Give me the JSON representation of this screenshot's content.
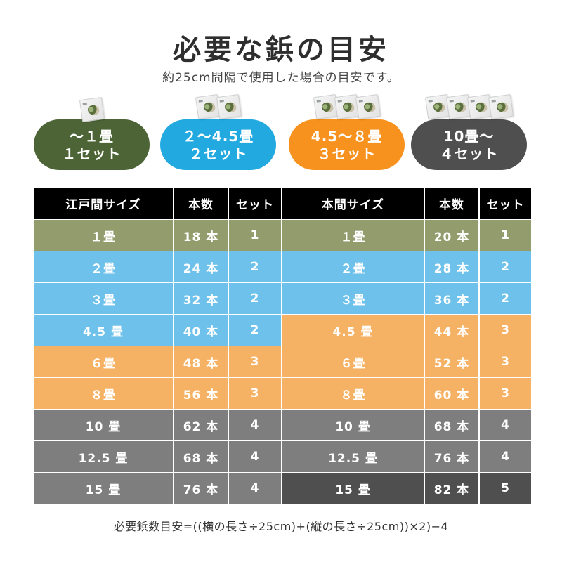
{
  "title": "必要な鋲の目安",
  "subtitle": "約25cm間隔で使用した場合の目安です。",
  "colors": {
    "olive": "#4d6536",
    "blue": "#22a9e0",
    "orange": "#f7921e",
    "dark": "#4f4f4f",
    "row_olive": "#929c6c",
    "row_blue": "#6ec1ea",
    "row_orange": "#f6b264",
    "row_gray": "#7e7e7e",
    "row_dark": "#4f4f4f",
    "header": "#000000"
  },
  "product_icon": "tack-package-icon",
  "pills": [
    {
      "line1": "〜１畳",
      "line2": "１セット",
      "color": "olive",
      "packs": 1
    },
    {
      "line1": "２〜4.5畳",
      "line2": "２セット",
      "color": "blue",
      "packs": 2
    },
    {
      "line1": "4.5〜８畳",
      "line2": "３セット",
      "color": "orange",
      "packs": 3
    },
    {
      "line1": "10畳〜",
      "line2": "４セット",
      "color": "dark",
      "packs": 4
    }
  ],
  "table": {
    "headers": [
      "江戸間サイズ",
      "本数",
      "セット",
      "本間サイズ",
      "本数",
      "セット"
    ],
    "rows": [
      {
        "edo": "１畳",
        "edo_count": "18 本",
        "edo_set": "1",
        "edo_color": "row_olive",
        "hon": "１畳",
        "hon_count": "20 本",
        "hon_set": "1",
        "hon_color": "row_olive"
      },
      {
        "edo": "２畳",
        "edo_count": "24 本",
        "edo_set": "2",
        "edo_color": "row_blue",
        "hon": "２畳",
        "hon_count": "28 本",
        "hon_set": "2",
        "hon_color": "row_blue"
      },
      {
        "edo": "３畳",
        "edo_count": "32 本",
        "edo_set": "2",
        "edo_color": "row_blue",
        "hon": "３畳",
        "hon_count": "36 本",
        "hon_set": "2",
        "hon_color": "row_blue"
      },
      {
        "edo": "4.5 畳",
        "edo_count": "40 本",
        "edo_set": "2",
        "edo_color": "row_blue",
        "hon": "4.5 畳",
        "hon_count": "44 本",
        "hon_set": "3",
        "hon_color": "row_orange"
      },
      {
        "edo": "６畳",
        "edo_count": "48 本",
        "edo_set": "3",
        "edo_color": "row_orange",
        "hon": "６畳",
        "hon_count": "52 本",
        "hon_set": "3",
        "hon_color": "row_orange"
      },
      {
        "edo": "８畳",
        "edo_count": "56 本",
        "edo_set": "3",
        "edo_color": "row_orange",
        "hon": "８畳",
        "hon_count": "60 本",
        "hon_set": "3",
        "hon_color": "row_orange"
      },
      {
        "edo": "10 畳",
        "edo_count": "62 本",
        "edo_set": "4",
        "edo_color": "row_gray",
        "hon": "10 畳",
        "hon_count": "68 本",
        "hon_set": "4",
        "hon_color": "row_gray"
      },
      {
        "edo": "12.5 畳",
        "edo_count": "68 本",
        "edo_set": "4",
        "edo_color": "row_gray",
        "hon": "12.5 畳",
        "hon_count": "76 本",
        "hon_set": "4",
        "hon_color": "row_gray"
      },
      {
        "edo": "15 畳",
        "edo_count": "76 本",
        "edo_set": "4",
        "edo_color": "row_gray",
        "hon": "15 畳",
        "hon_count": "82 本",
        "hon_set": "5",
        "hon_color": "row_dark"
      }
    ]
  },
  "formula": "必要鋲数目安=((横の長さ÷25cm)+(縦の長さ÷25cm))×2)−4"
}
